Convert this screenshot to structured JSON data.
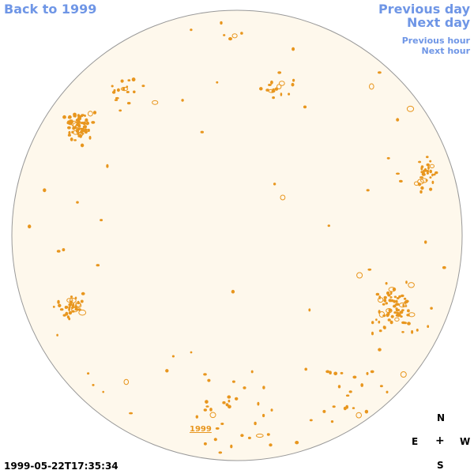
{
  "nav": {
    "back_label": "Back to 1999",
    "previous_day_label": "Previous day",
    "next_day_label": "Next day",
    "previous_hour_label": "Previous hour",
    "next_hour_label": "Next hour"
  },
  "sun_disk": {
    "fill_color": "#fef8ec",
    "stroke_color": "#999999",
    "feature_color": "#e8961e",
    "year_link_label": "1999"
  },
  "compass": {
    "north": "N",
    "east": "E",
    "west": "W",
    "south": "S",
    "center": "+"
  },
  "timestamp": "1999-05-22T17:35:34"
}
